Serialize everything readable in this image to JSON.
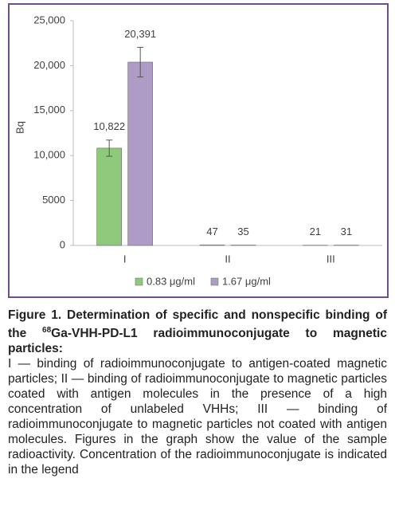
{
  "chart_data": {
    "type": "bar",
    "y_label": "Bq",
    "categories": [
      "I",
      "II",
      "III"
    ],
    "series": [
      {
        "name": "0.83 μg/ml",
        "color": "#8ec97c",
        "values": [
          10822,
          47,
          21
        ],
        "value_labels": [
          "10,822",
          "47",
          "21"
        ],
        "errors": [
          900,
          null,
          null
        ]
      },
      {
        "name": "1.67 μg/ml",
        "color": "#ae9cc6",
        "values": [
          20391,
          35,
          31
        ],
        "value_labels": [
          "20,391",
          "35",
          "31"
        ],
        "errors": [
          1650,
          null,
          null
        ]
      }
    ],
    "ylim": [
      0,
      25000
    ],
    "yticks": [
      0,
      5000,
      {
        "value": 10000,
        "label": "10,000"
      },
      {
        "value": 15000,
        "label": "15,000"
      },
      {
        "value": 20000,
        "label": "20,000"
      },
      {
        "value": 25000,
        "label": "25,000"
      }
    ],
    "grid": false,
    "legend": "bottom"
  },
  "caption": {
    "title_before": "Figure 1. Determination of specific and nonspecific binding of the ",
    "title_sup": "68",
    "title_after": "Ga-VHH-PD-L1 radioimmunoconjugate to magnetic particles:",
    "body": "I — binding of radioimmunoconjugate to antigen-coated magnetic particles; II — binding of radioimmunoconjugate to magnetic particles coated with antigen molecules in the presence of a high concentration of unlabeled VHHs; III — binding of radioimmunoconjugate to magnetic particles not coated with antigen molecules. Figures in the graph show the value of the sample radioactivity. Concentration of the radioimmunoconjugate is indicated in the legend"
  }
}
